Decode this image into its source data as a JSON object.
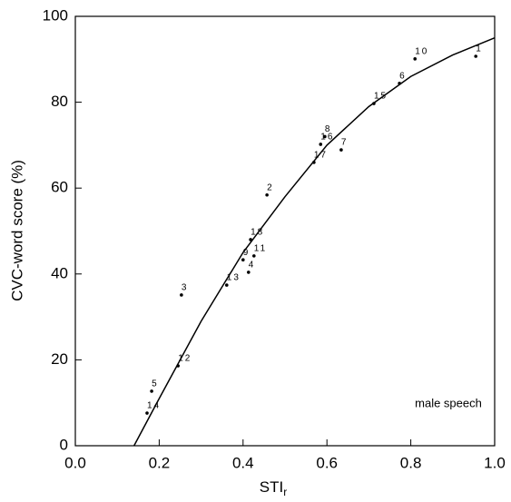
{
  "chart_data": {
    "type": "scatter",
    "xlabel": "STI",
    "xlabel_sub": "r",
    "ylabel": "CVC-word score (%)",
    "annotation": "male speech",
    "xlim": [
      0,
      1
    ],
    "ylim": [
      0,
      100
    ],
    "xticks": [
      {
        "value": 0,
        "label": "0.0"
      },
      {
        "value": 0.2,
        "label": "0.2"
      },
      {
        "value": 0.4,
        "label": "0.4"
      },
      {
        "value": 0.6,
        "label": "0.6"
      },
      {
        "value": 0.8,
        "label": "0.8"
      },
      {
        "value": 1,
        "label": "1.0"
      }
    ],
    "yticks": [
      0,
      20,
      40,
      60,
      80,
      100
    ],
    "color": "#000000",
    "point_labels": [
      "1",
      "10",
      "6",
      "15",
      "8",
      "16",
      "7",
      "17",
      "2",
      "18",
      "11",
      "9",
      "4",
      "3",
      "13",
      "12",
      "5",
      "14"
    ],
    "x": [
      0.955,
      0.81,
      0.773,
      0.712,
      0.595,
      0.585,
      0.634,
      0.569,
      0.457,
      0.418,
      0.426,
      0.4,
      0.413,
      0.253,
      0.361,
      0.245,
      0.182,
      0.171
    ],
    "values": [
      90.7,
      90.1,
      84.4,
      79.7,
      72.0,
      70.2,
      68.9,
      66.0,
      58.4,
      48.0,
      44.2,
      43.3,
      40.4,
      35.1,
      37.4,
      18.6,
      12.7,
      7.6
    ],
    "fit": {
      "x": [
        0.14,
        0.2,
        0.3,
        0.4,
        0.5,
        0.6,
        0.7,
        0.8,
        0.9,
        1.0
      ],
      "values": [
        0,
        11,
        29,
        45,
        58,
        70,
        79,
        86,
        91,
        95
      ]
    }
  }
}
